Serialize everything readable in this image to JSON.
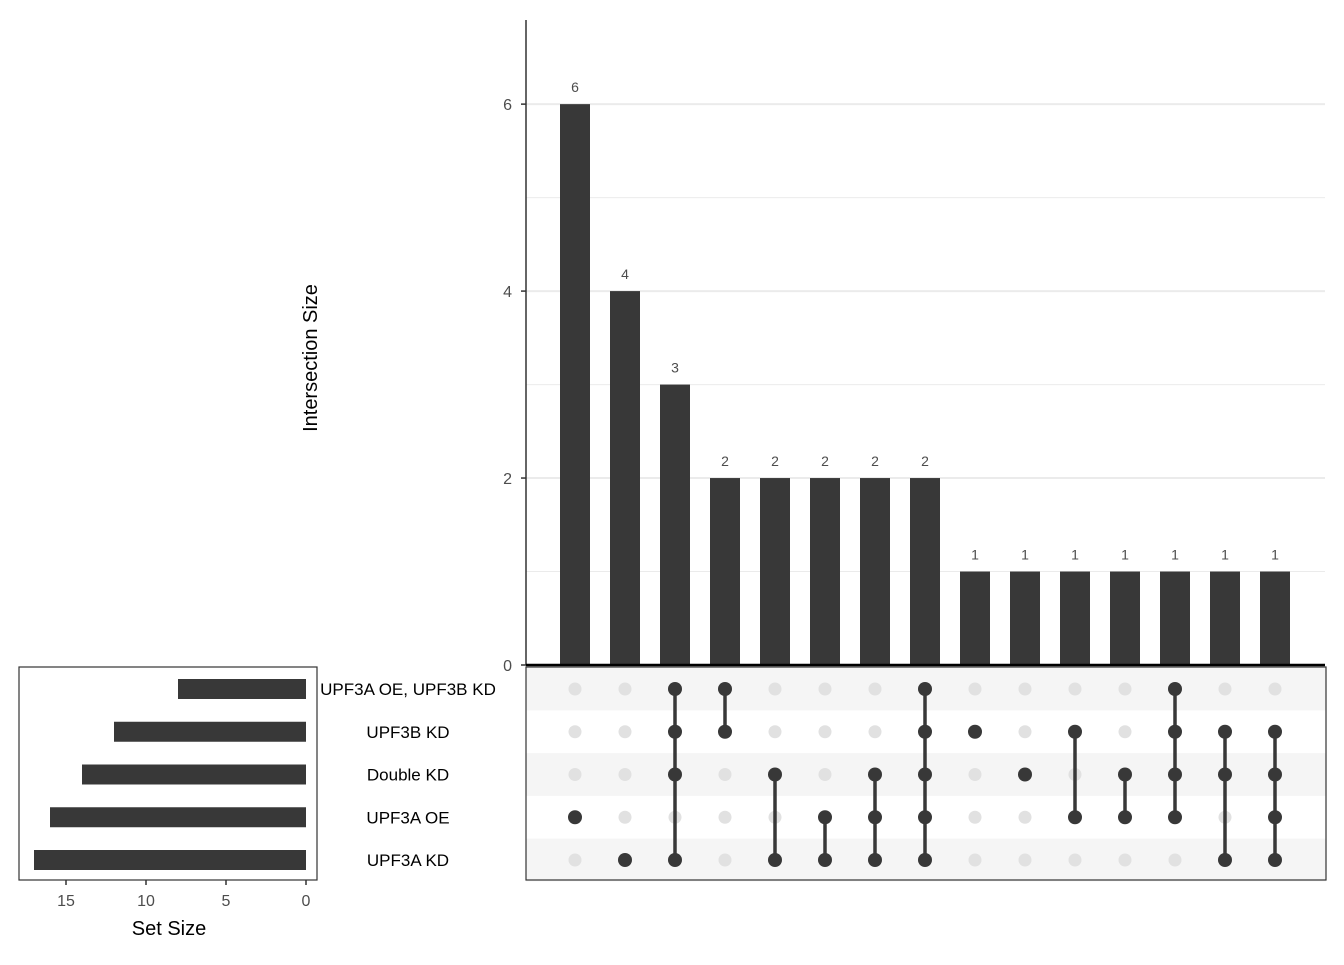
{
  "chart_data": {
    "type": "upset",
    "colors": {
      "bar": "#383838",
      "dot_active": "#383838",
      "dot_inactive": "#e1e1e1",
      "stripe": "#f5f5f5",
      "gridline": "#ebebeb",
      "axis_text": "#4d4d4d"
    },
    "intersection_axis": {
      "label": "Intersection Size",
      "ylim": [
        0,
        6.9
      ],
      "ticks": [
        0,
        2,
        4,
        6
      ],
      "tick_labels": [
        "0",
        "2",
        "4",
        "6"
      ],
      "minor_gridlines": [
        1,
        3,
        5
      ]
    },
    "set_size_axis": {
      "label": "Set Size",
      "xlim": [
        0,
        17.8
      ],
      "ticks": [
        15,
        10,
        5,
        0
      ],
      "tick_labels": [
        "15",
        "10",
        "5",
        "0"
      ]
    },
    "sets": [
      {
        "name": "UPF3A OE, UPF3B KD",
        "size": 8
      },
      {
        "name": "UPF3B KD",
        "size": 12
      },
      {
        "name": "Double KD",
        "size": 14
      },
      {
        "name": "UPF3A OE",
        "size": 16
      },
      {
        "name": "UPF3A KD",
        "size": 17
      }
    ],
    "intersections": [
      {
        "value": 6,
        "label": "6",
        "members": [
          "UPF3A OE"
        ]
      },
      {
        "value": 4,
        "label": "4",
        "members": [
          "UPF3A KD"
        ]
      },
      {
        "value": 3,
        "label": "3",
        "members": [
          "UPF3A OE, UPF3B KD",
          "UPF3B KD",
          "Double KD",
          "UPF3A KD"
        ]
      },
      {
        "value": 2,
        "label": "2",
        "members": [
          "UPF3A OE, UPF3B KD",
          "UPF3B KD"
        ]
      },
      {
        "value": 2,
        "label": "2",
        "members": [
          "Double KD",
          "UPF3A KD"
        ]
      },
      {
        "value": 2,
        "label": "2",
        "members": [
          "UPF3A OE",
          "UPF3A KD"
        ]
      },
      {
        "value": 2,
        "label": "2",
        "members": [
          "Double KD",
          "UPF3A OE",
          "UPF3A KD"
        ]
      },
      {
        "value": 2,
        "label": "2",
        "members": [
          "UPF3A OE, UPF3B KD",
          "UPF3B KD",
          "Double KD",
          "UPF3A OE",
          "UPF3A KD"
        ]
      },
      {
        "value": 1,
        "label": "1",
        "members": [
          "UPF3B KD"
        ]
      },
      {
        "value": 1,
        "label": "1",
        "members": [
          "Double KD"
        ]
      },
      {
        "value": 1,
        "label": "1",
        "members": [
          "UPF3B KD",
          "UPF3A OE"
        ]
      },
      {
        "value": 1,
        "label": "1",
        "members": [
          "Double KD",
          "UPF3A OE"
        ]
      },
      {
        "value": 1,
        "label": "1",
        "members": [
          "UPF3A OE, UPF3B KD",
          "UPF3B KD",
          "Double KD",
          "UPF3A OE"
        ]
      },
      {
        "value": 1,
        "label": "1",
        "members": [
          "UPF3B KD",
          "Double KD",
          "UPF3A KD"
        ]
      },
      {
        "value": 1,
        "label": "1",
        "members": [
          "UPF3B KD",
          "Double KD",
          "UPF3A OE",
          "UPF3A KD"
        ]
      }
    ]
  }
}
